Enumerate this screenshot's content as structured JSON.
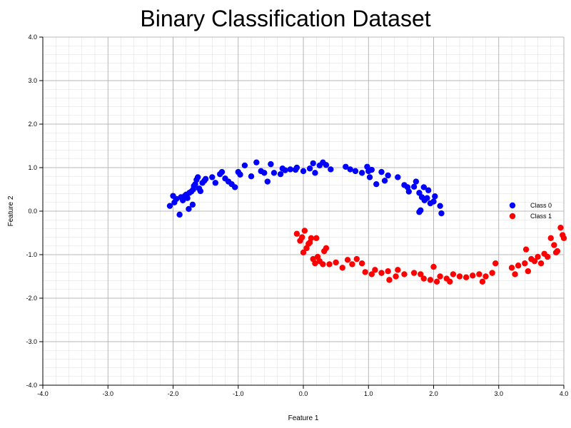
{
  "chart_data": {
    "type": "scatter",
    "title": "Binary Classification Dataset",
    "xlabel": "Feature 1",
    "ylabel": "Feature 2",
    "xlim": [
      -4.0,
      4.0
    ],
    "ylim": [
      -4.0,
      4.0
    ],
    "xticks": [
      "-4.0",
      "-3.0",
      "-2.0",
      "-1.0",
      "0.0",
      "1.0",
      "2.0",
      "3.0",
      "4.0"
    ],
    "yticks": [
      "-4.0",
      "-3.0",
      "-2.0",
      "-1.0",
      "0.0",
      "1.0",
      "2.0",
      "3.0",
      "4.0"
    ],
    "grid": true,
    "minor_grid": true,
    "legend_position": "right",
    "series": [
      {
        "name": "Class 0",
        "color": "#0000ff",
        "points": [
          [
            -2.05,
            0.12
          ],
          [
            -2.0,
            0.35
          ],
          [
            -1.98,
            0.2
          ],
          [
            -1.95,
            0.28
          ],
          [
            -1.9,
            -0.08
          ],
          [
            -1.88,
            0.32
          ],
          [
            -1.85,
            0.25
          ],
          [
            -1.82,
            0.35
          ],
          [
            -1.8,
            0.38
          ],
          [
            -1.78,
            0.3
          ],
          [
            -1.76,
            0.05
          ],
          [
            -1.75,
            0.42
          ],
          [
            -1.72,
            0.45
          ],
          [
            -1.7,
            0.15
          ],
          [
            -1.69,
            0.5
          ],
          [
            -1.68,
            0.58
          ],
          [
            -1.66,
            0.62
          ],
          [
            -1.64,
            0.72
          ],
          [
            -1.62,
            0.78
          ],
          [
            -1.6,
            0.52
          ],
          [
            -1.58,
            0.46
          ],
          [
            -1.55,
            0.65
          ],
          [
            -1.52,
            0.7
          ],
          [
            -1.5,
            0.74
          ],
          [
            -1.4,
            0.78
          ],
          [
            -1.35,
            0.65
          ],
          [
            -1.28,
            0.85
          ],
          [
            -1.25,
            0.9
          ],
          [
            -1.2,
            0.75
          ],
          [
            -1.15,
            0.68
          ],
          [
            -1.1,
            0.62
          ],
          [
            -1.05,
            0.55
          ],
          [
            -1.0,
            0.9
          ],
          [
            -0.97,
            0.84
          ],
          [
            -0.9,
            1.05
          ],
          [
            -0.8,
            0.8
          ],
          [
            -0.72,
            1.12
          ],
          [
            -0.65,
            0.92
          ],
          [
            -0.6,
            0.88
          ],
          [
            -0.55,
            0.68
          ],
          [
            -0.5,
            1.08
          ],
          [
            -0.45,
            0.88
          ],
          [
            -0.35,
            0.85
          ],
          [
            -0.32,
            0.98
          ],
          [
            -0.28,
            0.94
          ],
          [
            -0.2,
            0.96
          ],
          [
            -0.12,
            0.95
          ],
          [
            -0.1,
            1.0
          ],
          [
            0.0,
            0.92
          ],
          [
            0.1,
            0.98
          ],
          [
            0.15,
            1.1
          ],
          [
            0.18,
            0.88
          ],
          [
            0.25,
            1.05
          ],
          [
            0.3,
            1.12
          ],
          [
            0.35,
            1.06
          ],
          [
            0.42,
            0.96
          ],
          [
            0.65,
            1.02
          ],
          [
            0.72,
            0.96
          ],
          [
            0.8,
            0.92
          ],
          [
            0.9,
            0.88
          ],
          [
            0.98,
            1.02
          ],
          [
            1.0,
            0.92
          ],
          [
            1.02,
            0.78
          ],
          [
            1.05,
            0.95
          ],
          [
            1.12,
            0.62
          ],
          [
            1.2,
            0.9
          ],
          [
            1.25,
            0.7
          ],
          [
            1.3,
            0.82
          ],
          [
            1.45,
            0.78
          ],
          [
            1.55,
            0.6
          ],
          [
            1.6,
            0.55
          ],
          [
            1.62,
            0.45
          ],
          [
            1.7,
            0.56
          ],
          [
            1.73,
            0.68
          ],
          [
            1.78,
            0.42
          ],
          [
            1.8,
            0.02
          ],
          [
            1.82,
            0.32
          ],
          [
            1.85,
            0.55
          ],
          [
            1.86,
            0.25
          ],
          [
            1.9,
            0.3
          ],
          [
            1.92,
            0.48
          ],
          [
            1.95,
            0.18
          ],
          [
            2.0,
            0.22
          ],
          [
            2.02,
            0.34
          ],
          [
            2.1,
            0.12
          ],
          [
            2.12,
            -0.05
          ],
          [
            1.78,
            -0.02
          ]
        ]
      },
      {
        "name": "Class 1",
        "color": "#ff0000",
        "points": [
          [
            -0.1,
            -0.52
          ],
          [
            -0.05,
            -0.68
          ],
          [
            -0.02,
            -0.6
          ],
          [
            0.0,
            -0.95
          ],
          [
            0.02,
            -0.45
          ],
          [
            0.05,
            -0.85
          ],
          [
            0.08,
            -0.75
          ],
          [
            0.1,
            -0.72
          ],
          [
            0.12,
            -0.62
          ],
          [
            0.15,
            -1.1
          ],
          [
            0.18,
            -1.2
          ],
          [
            0.2,
            -0.62
          ],
          [
            0.22,
            -1.05
          ],
          [
            0.25,
            -1.15
          ],
          [
            0.3,
            -1.22
          ],
          [
            0.32,
            -0.92
          ],
          [
            0.35,
            -0.85
          ],
          [
            0.4,
            -1.22
          ],
          [
            0.5,
            -1.18
          ],
          [
            0.6,
            -1.3
          ],
          [
            0.68,
            -1.12
          ],
          [
            0.75,
            -1.22
          ],
          [
            0.82,
            -1.1
          ],
          [
            0.9,
            -1.2
          ],
          [
            0.95,
            -1.4
          ],
          [
            1.05,
            -1.45
          ],
          [
            1.1,
            -1.35
          ],
          [
            1.2,
            -1.42
          ],
          [
            1.3,
            -1.38
          ],
          [
            1.32,
            -1.58
          ],
          [
            1.42,
            -1.5
          ],
          [
            1.45,
            -1.35
          ],
          [
            1.55,
            -1.45
          ],
          [
            1.7,
            -1.42
          ],
          [
            1.8,
            -1.45
          ],
          [
            1.85,
            -1.55
          ],
          [
            1.95,
            -1.58
          ],
          [
            2.0,
            -1.28
          ],
          [
            2.05,
            -1.62
          ],
          [
            2.1,
            -1.5
          ],
          [
            2.2,
            -1.55
          ],
          [
            2.25,
            -1.62
          ],
          [
            2.3,
            -1.45
          ],
          [
            2.4,
            -1.5
          ],
          [
            2.5,
            -1.52
          ],
          [
            2.6,
            -1.48
          ],
          [
            2.7,
            -1.45
          ],
          [
            2.75,
            -1.62
          ],
          [
            2.8,
            -1.5
          ],
          [
            2.9,
            -1.42
          ],
          [
            2.95,
            -1.2
          ],
          [
            3.2,
            -1.3
          ],
          [
            3.25,
            -1.45
          ],
          [
            3.3,
            -1.25
          ],
          [
            3.4,
            -1.2
          ],
          [
            3.45,
            -1.38
          ],
          [
            3.5,
            -1.1
          ],
          [
            3.55,
            -1.15
          ],
          [
            3.6,
            -1.05
          ],
          [
            3.65,
            -1.2
          ],
          [
            3.7,
            -0.98
          ],
          [
            3.75,
            -1.05
          ],
          [
            3.8,
            -0.62
          ],
          [
            3.85,
            -0.78
          ],
          [
            3.88,
            -0.95
          ],
          [
            3.9,
            -0.92
          ],
          [
            3.95,
            -0.38
          ],
          [
            3.98,
            -0.55
          ],
          [
            4.0,
            -0.62
          ],
          [
            3.42,
            -0.88
          ]
        ]
      }
    ]
  }
}
